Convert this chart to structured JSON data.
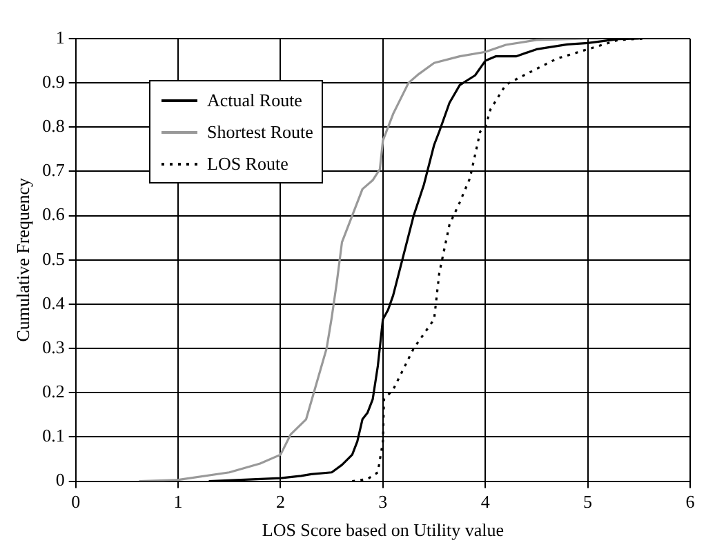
{
  "chart_data": {
    "type": "line",
    "xlabel": "LOS Score based on Utility value",
    "ylabel": "Cumulative Frequency",
    "xlim": [
      0,
      6
    ],
    "xticks": [
      0,
      1,
      2,
      3,
      4,
      5,
      6
    ],
    "ylim": [
      0,
      1
    ],
    "yticks": [
      0,
      0.1,
      0.2,
      0.3,
      0.4,
      0.5,
      0.6,
      0.7,
      0.8,
      0.9,
      1
    ],
    "grid": true,
    "legend": "top left",
    "marker": "none",
    "series": [
      {
        "name": "Actual Route",
        "color": "#000000",
        "line_style": "solid",
        "x": [
          1.3,
          2,
          2.2,
          2.3,
          2.5,
          2.6,
          2.7,
          2.75,
          2.8,
          2.85,
          2.9,
          2.95,
          3,
          3.05,
          3.1,
          3.2,
          3.3,
          3.4,
          3.5,
          3.55,
          3.65,
          3.75,
          3.9,
          4,
          4.1,
          4.3,
          4.5,
          4.8,
          5,
          5.3,
          5.5
        ],
        "values": [
          0,
          0.007,
          0.012,
          0.016,
          0.02,
          0.037,
          0.06,
          0.09,
          0.14,
          0.155,
          0.185,
          0.26,
          0.366,
          0.387,
          0.42,
          0.51,
          0.6,
          0.67,
          0.76,
          0.79,
          0.855,
          0.895,
          0.917,
          0.95,
          0.96,
          0.96,
          0.976,
          0.987,
          0.99,
          0.999,
          1
        ]
      },
      {
        "name": "Shortest Route",
        "color": "#999999",
        "line_style": "solid",
        "x": [
          0.62,
          1,
          1.5,
          1.8,
          2,
          2.1,
          2.25,
          2.35,
          2.45,
          2.5,
          2.55,
          2.6,
          2.7,
          2.8,
          2.9,
          2.97,
          3,
          3.1,
          3.25,
          3.35,
          3.5,
          3.75,
          4,
          4.2,
          4.5,
          5
        ],
        "values": [
          0,
          0.003,
          0.02,
          0.04,
          0.06,
          0.106,
          0.14,
          0.22,
          0.3,
          0.37,
          0.45,
          0.54,
          0.6,
          0.66,
          0.68,
          0.705,
          0.77,
          0.83,
          0.9,
          0.92,
          0.945,
          0.96,
          0.97,
          0.986,
          0.997,
          1
        ]
      },
      {
        "name": "LOS Route",
        "color": "#000000",
        "line_style": "dotted",
        "x": [
          2.7,
          2.85,
          2.95,
          3,
          3.01,
          3.1,
          3.3,
          3.5,
          3.55,
          3.65,
          3.75,
          3.85,
          3.95,
          4,
          4.05,
          4.2,
          4.4,
          4.7,
          5,
          5.3,
          5.55
        ],
        "values": [
          0,
          0.005,
          0.02,
          0.09,
          0.185,
          0.207,
          0.3,
          0.366,
          0.47,
          0.58,
          0.63,
          0.685,
          0.79,
          0.8,
          0.84,
          0.896,
          0.92,
          0.955,
          0.976,
          0.997,
          1
        ]
      }
    ]
  }
}
